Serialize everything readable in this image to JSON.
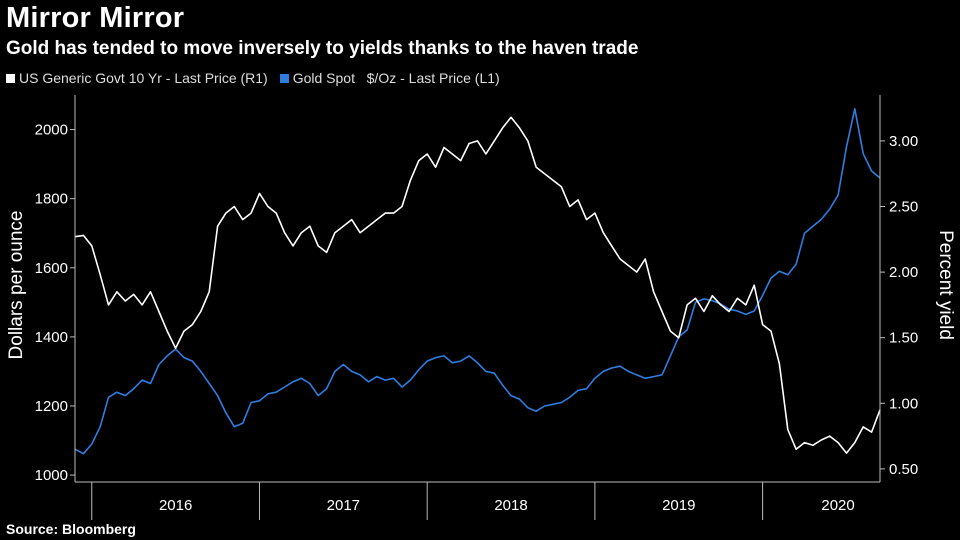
{
  "title": "Mirror Mirror",
  "subtitle": "Gold has tended to move inversely to yields thanks to the haven trade",
  "source": "Source: Bloomberg",
  "colors": {
    "gold": "#2f7de1",
    "yield": "#ffffff",
    "background": "#000000"
  },
  "chart_data": {
    "type": "line",
    "title": "Mirror Mirror",
    "subtitle": "Gold has tended to move inversely to yields thanks to the haven trade",
    "legend": [
      {
        "name": "US Generic Govt 10 Yr - Last Price (R1)",
        "color": "#ffffff"
      },
      {
        "name": "Gold Spot   $/Oz - Last Price (L1)",
        "color": "#2f7de1"
      }
    ],
    "xlabel": "",
    "ylabel_left": "Dollars per ounce",
    "ylabel_right": "Percent yield",
    "x_range": [
      2015.9,
      2020.7
    ],
    "ylim_left": [
      980,
      2100
    ],
    "ylim_right": [
      0.4,
      3.35
    ],
    "left_ticks": [
      1000,
      1200,
      1400,
      1600,
      1800,
      2000
    ],
    "right_ticks": [
      0.5,
      1.0,
      1.5,
      2.0,
      2.5,
      3.0
    ],
    "right_tick_labels": [
      "0.50",
      "1.00",
      "1.50",
      "2.00",
      "2.50",
      "3.00"
    ],
    "year_labels": [
      "2016",
      "2017",
      "2018",
      "2019",
      "2020"
    ],
    "year_label_x": [
      2016.5,
      2017.5,
      2018.5,
      2019.5,
      2020.45
    ],
    "year_boundaries": [
      2016.0,
      2017.0,
      2018.0,
      2019.0,
      2020.0
    ],
    "series": [
      {
        "name": "Gold Spot   $/Oz - Last Price (L1)",
        "axis": "left",
        "x": [
          2015.9,
          2015.95,
          2016.0,
          2016.05,
          2016.1,
          2016.15,
          2016.2,
          2016.25,
          2016.3,
          2016.35,
          2016.4,
          2016.45,
          2016.5,
          2016.55,
          2016.6,
          2016.65,
          2016.7,
          2016.75,
          2016.8,
          2016.85,
          2016.9,
          2016.95,
          2017.0,
          2017.05,
          2017.1,
          2017.15,
          2017.2,
          2017.25,
          2017.3,
          2017.35,
          2017.4,
          2017.45,
          2017.5,
          2017.55,
          2017.6,
          2017.65,
          2017.7,
          2017.75,
          2017.8,
          2017.85,
          2017.9,
          2017.95,
          2018.0,
          2018.05,
          2018.1,
          2018.15,
          2018.2,
          2018.25,
          2018.3,
          2018.35,
          2018.4,
          2018.45,
          2018.5,
          2018.55,
          2018.6,
          2018.65,
          2018.7,
          2018.75,
          2018.8,
          2018.85,
          2018.9,
          2018.95,
          2019.0,
          2019.05,
          2019.1,
          2019.15,
          2019.2,
          2019.25,
          2019.3,
          2019.35,
          2019.4,
          2019.45,
          2019.5,
          2019.55,
          2019.6,
          2019.65,
          2019.7,
          2019.75,
          2019.8,
          2019.85,
          2019.9,
          2019.95,
          2020.0,
          2020.05,
          2020.1,
          2020.15,
          2020.2,
          2020.25,
          2020.3,
          2020.35,
          2020.4,
          2020.45,
          2020.5,
          2020.55,
          2020.6,
          2020.65,
          2020.7
        ],
        "values": [
          1075,
          1062,
          1090,
          1140,
          1225,
          1240,
          1230,
          1250,
          1275,
          1265,
          1320,
          1345,
          1365,
          1340,
          1330,
          1300,
          1265,
          1230,
          1180,
          1140,
          1150,
          1210,
          1215,
          1235,
          1240,
          1255,
          1270,
          1280,
          1265,
          1230,
          1250,
          1300,
          1320,
          1300,
          1290,
          1270,
          1285,
          1275,
          1280,
          1255,
          1275,
          1305,
          1330,
          1340,
          1345,
          1325,
          1330,
          1345,
          1325,
          1300,
          1295,
          1260,
          1230,
          1220,
          1195,
          1185,
          1200,
          1205,
          1210,
          1225,
          1245,
          1250,
          1280,
          1300,
          1310,
          1315,
          1300,
          1290,
          1280,
          1285,
          1290,
          1345,
          1400,
          1420,
          1500,
          1510,
          1505,
          1495,
          1480,
          1475,
          1465,
          1475,
          1520,
          1570,
          1590,
          1580,
          1610,
          1700,
          1720,
          1740,
          1770,
          1810,
          1950,
          2060,
          1930,
          1880,
          1860
        ]
      },
      {
        "name": "US Generic Govt 10 Yr - Last Price (R1)",
        "axis": "right",
        "x": [
          2015.9,
          2015.95,
          2016.0,
          2016.05,
          2016.1,
          2016.15,
          2016.2,
          2016.25,
          2016.3,
          2016.35,
          2016.4,
          2016.45,
          2016.5,
          2016.55,
          2016.6,
          2016.65,
          2016.7,
          2016.75,
          2016.8,
          2016.85,
          2016.9,
          2016.95,
          2017.0,
          2017.05,
          2017.1,
          2017.15,
          2017.2,
          2017.25,
          2017.3,
          2017.35,
          2017.4,
          2017.45,
          2017.5,
          2017.55,
          2017.6,
          2017.65,
          2017.7,
          2017.75,
          2017.8,
          2017.85,
          2017.9,
          2017.95,
          2018.0,
          2018.05,
          2018.1,
          2018.15,
          2018.2,
          2018.25,
          2018.3,
          2018.35,
          2018.4,
          2018.45,
          2018.5,
          2018.55,
          2018.6,
          2018.65,
          2018.7,
          2018.75,
          2018.8,
          2018.85,
          2018.9,
          2018.95,
          2019.0,
          2019.05,
          2019.1,
          2019.15,
          2019.2,
          2019.25,
          2019.3,
          2019.35,
          2019.4,
          2019.45,
          2019.5,
          2019.55,
          2019.6,
          2019.65,
          2019.7,
          2019.75,
          2019.8,
          2019.85,
          2019.9,
          2019.95,
          2020.0,
          2020.05,
          2020.1,
          2020.15,
          2020.2,
          2020.25,
          2020.3,
          2020.35,
          2020.4,
          2020.45,
          2020.5,
          2020.55,
          2020.6,
          2020.65,
          2020.7
        ],
        "values": [
          2.27,
          2.28,
          2.2,
          1.98,
          1.75,
          1.85,
          1.78,
          1.83,
          1.75,
          1.85,
          1.7,
          1.55,
          1.42,
          1.55,
          1.6,
          1.7,
          1.85,
          2.35,
          2.45,
          2.5,
          2.4,
          2.45,
          2.6,
          2.5,
          2.45,
          2.3,
          2.2,
          2.3,
          2.35,
          2.2,
          2.15,
          2.3,
          2.35,
          2.4,
          2.3,
          2.35,
          2.4,
          2.45,
          2.45,
          2.5,
          2.7,
          2.85,
          2.9,
          2.8,
          2.95,
          2.9,
          2.85,
          2.98,
          3.0,
          2.9,
          3.0,
          3.1,
          3.18,
          3.1,
          3.0,
          2.8,
          2.75,
          2.7,
          2.65,
          2.5,
          2.55,
          2.4,
          2.45,
          2.3,
          2.2,
          2.1,
          2.05,
          2.0,
          2.1,
          1.85,
          1.7,
          1.55,
          1.5,
          1.75,
          1.8,
          1.7,
          1.82,
          1.75,
          1.7,
          1.8,
          1.75,
          1.9,
          1.6,
          1.55,
          1.3,
          0.8,
          0.65,
          0.7,
          0.68,
          0.72,
          0.75,
          0.7,
          0.62,
          0.7,
          0.82,
          0.78,
          0.95
        ]
      }
    ]
  }
}
